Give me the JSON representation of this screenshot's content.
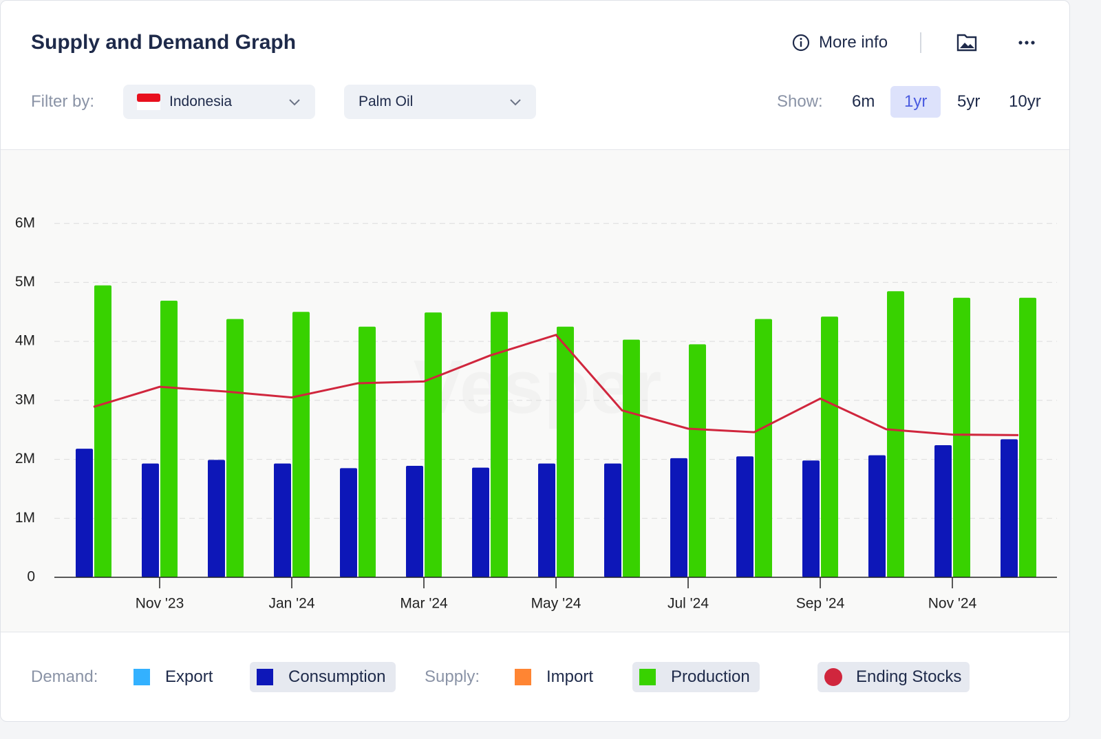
{
  "header": {
    "title": "Supply and Demand Graph",
    "more_info": "More info"
  },
  "filters": {
    "label": "Filter by:",
    "country": "Indonesia",
    "commodity": "Palm Oil"
  },
  "range": {
    "label": "Show:",
    "options": [
      "6m",
      "1yr",
      "5yr",
      "10yr"
    ],
    "selected": 1
  },
  "chart_data": {
    "type": "bar",
    "watermark": "Vesper",
    "categories": [
      null,
      "Nov '23",
      null,
      "Jan '24",
      null,
      "Mar '24",
      null,
      "May '24",
      null,
      "Jul '24",
      null,
      "Sep '24",
      null,
      "Nov '24",
      null
    ],
    "ylim": [
      0,
      7000000
    ],
    "yticks": [
      0,
      {
        "value": 1000000,
        "label": "1M"
      },
      {
        "value": 2000000,
        "label": "2M"
      },
      {
        "value": 3000000,
        "label": "3M"
      },
      {
        "value": 4000000,
        "label": "4M"
      },
      {
        "value": 5000000,
        "label": "5M"
      },
      {
        "value": 6000000,
        "label": "6M"
      }
    ],
    "grid": true,
    "series": [
      {
        "name": "Export",
        "group": "Demand:",
        "color": "#33b1ff",
        "type": "bar",
        "active": false,
        "values": [
          null,
          null,
          null,
          null,
          null,
          null,
          null,
          null,
          null,
          null,
          null,
          null,
          null,
          null,
          null
        ]
      },
      {
        "name": "Consumption",
        "group": "Demand:",
        "color": "#0d17b8",
        "type": "bar",
        "active": true,
        "values": [
          2180000,
          1930000,
          1990000,
          1930000,
          1850000,
          1890000,
          1860000,
          1930000,
          1930000,
          2020000,
          2050000,
          1980000,
          2070000,
          2240000,
          2340000
        ]
      },
      {
        "name": "Import",
        "group": "Supply:",
        "color": "#ff8533",
        "type": "bar",
        "active": false,
        "values": [
          null,
          null,
          null,
          null,
          null,
          null,
          null,
          null,
          null,
          null,
          null,
          null,
          null,
          null,
          null
        ]
      },
      {
        "name": "Production",
        "group": "Supply:",
        "color": "#38d200",
        "type": "bar",
        "active": true,
        "values": [
          4950000,
          4690000,
          4380000,
          4500000,
          4250000,
          4490000,
          4500000,
          4250000,
          4030000,
          3950000,
          4380000,
          4420000,
          4850000,
          4740000,
          4740000
        ]
      },
      {
        "name": "Ending Stocks",
        "color": "#d0263d",
        "type": "line",
        "active": true,
        "values": [
          2890000,
          3230000,
          3150000,
          3050000,
          3290000,
          3320000,
          3760000,
          4110000,
          2830000,
          2520000,
          2460000,
          3030000,
          2510000,
          2420000,
          2410000
        ]
      }
    ]
  }
}
